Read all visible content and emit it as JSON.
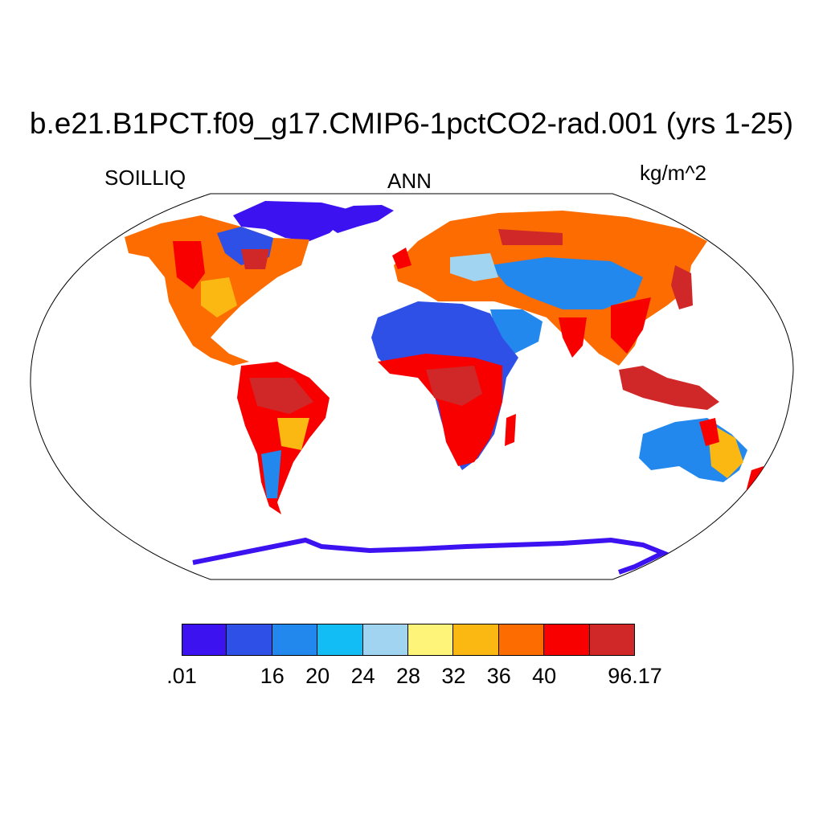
{
  "title": "b.e21.B1PCT.f09_g17.CMIP6-1pctCO2-rad.001 (yrs 1-25)",
  "variable": "SOILLIQ",
  "season": "ANN",
  "units": "kg/m^2",
  "projection": "Robinson",
  "colorbar": {
    "colors": [
      "#3c12f0",
      "#2e50e6",
      "#2288ee",
      "#12bcf5",
      "#a0d4f0",
      "#fff47a",
      "#fcb812",
      "#fc6c00",
      "#f80000",
      "#d02828"
    ],
    "labels": [
      ".01",
      "",
      "16",
      "20",
      "24",
      "28",
      "32",
      "36",
      "40",
      "",
      "96.17"
    ]
  },
  "map_colors": {
    "ice": "#3c12f0",
    "very_low": "#2e50e6",
    "low": "#2288ee",
    "low_mid": "#12bcf5",
    "mid": "#a0d4f0",
    "mid_high": "#fff47a",
    "high": "#fcb812",
    "higher": "#fc6c00",
    "very_high": "#f80000",
    "max": "#d02828"
  }
}
